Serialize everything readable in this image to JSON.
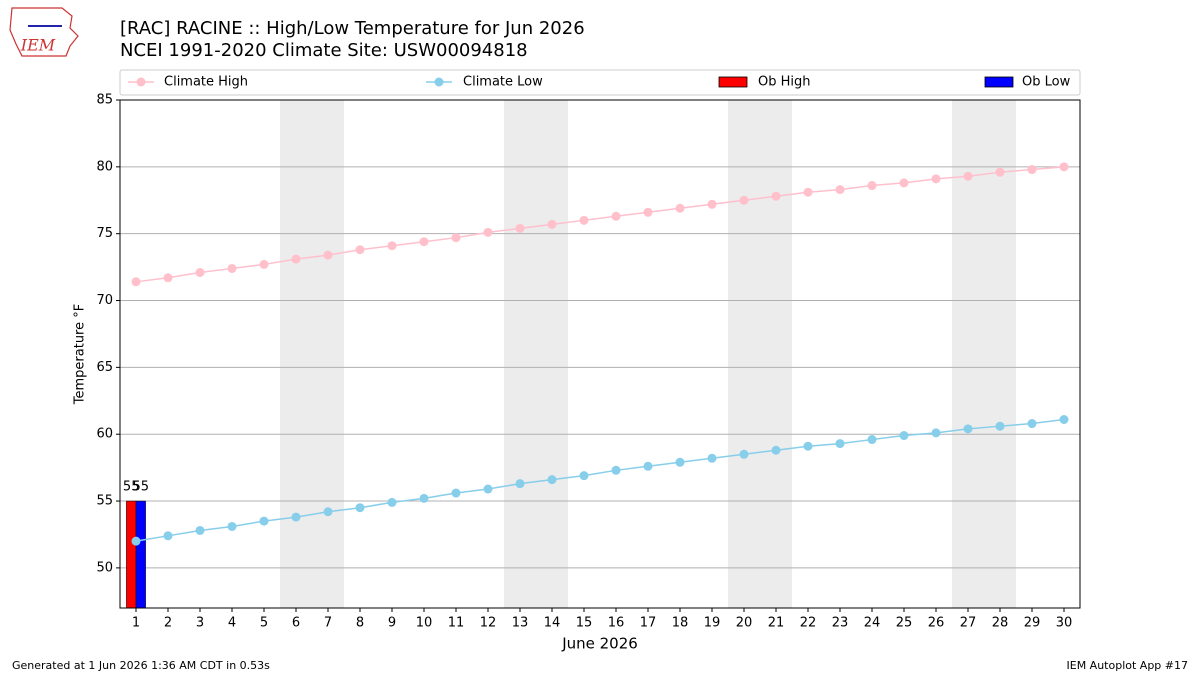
{
  "chart_data": {
    "type": "combo",
    "title": "[RAC] RACINE :: High/Low Temperature for Jun 2026",
    "subtitle": "NCEI 1991-2020 Climate Site: USW00094818",
    "y_label": "Temperature °F",
    "x_label": "June 2026",
    "x": [
      1,
      2,
      3,
      4,
      5,
      6,
      7,
      8,
      9,
      10,
      11,
      12,
      13,
      14,
      15,
      16,
      17,
      18,
      19,
      20,
      21,
      22,
      23,
      24,
      25,
      26,
      27,
      28,
      29,
      30
    ],
    "series": [
      {
        "name": "Climate High",
        "type": "line",
        "color": "#ffc0cb",
        "values": [
          71.4,
          71.7,
          72.1,
          72.4,
          72.7,
          73.1,
          73.4,
          73.8,
          74.1,
          74.4,
          74.7,
          75.1,
          75.4,
          75.7,
          76.0,
          76.3,
          76.6,
          76.9,
          77.2,
          77.5,
          77.8,
          78.1,
          78.3,
          78.6,
          78.8,
          79.1,
          79.3,
          79.6,
          79.8,
          80.0
        ]
      },
      {
        "name": "Climate Low",
        "type": "line",
        "color": "#87ceeb",
        "values": [
          52.0,
          52.4,
          52.8,
          53.1,
          53.5,
          53.8,
          54.2,
          54.5,
          54.9,
          55.2,
          55.6,
          55.9,
          56.3,
          56.6,
          56.9,
          57.3,
          57.6,
          57.9,
          58.2,
          58.5,
          58.8,
          59.1,
          59.3,
          59.6,
          59.9,
          60.1,
          60.4,
          60.6,
          60.8,
          61.1
        ]
      },
      {
        "name": "Ob High",
        "type": "bar",
        "color": "#ff0000",
        "values": [
          55,
          null,
          null,
          null,
          null,
          null,
          null,
          null,
          null,
          null,
          null,
          null,
          null,
          null,
          null,
          null,
          null,
          null,
          null,
          null,
          null,
          null,
          null,
          null,
          null,
          null,
          null,
          null,
          null,
          null
        ]
      },
      {
        "name": "Ob Low",
        "type": "bar",
        "color": "#0000ff",
        "values": [
          55,
          null,
          null,
          null,
          null,
          null,
          null,
          null,
          null,
          null,
          null,
          null,
          null,
          null,
          null,
          null,
          null,
          null,
          null,
          null,
          null,
          null,
          null,
          null,
          null,
          null,
          null,
          null,
          null,
          null
        ]
      }
    ],
    "xlim": [
      0.5,
      30.5
    ],
    "xticks": [
      1,
      2,
      3,
      4,
      5,
      6,
      7,
      8,
      9,
      10,
      11,
      12,
      13,
      14,
      15,
      16,
      17,
      18,
      19,
      20,
      21,
      22,
      23,
      24,
      25,
      26,
      27,
      28,
      29,
      30
    ],
    "ylim": [
      47,
      85
    ],
    "yticks": [
      50,
      55,
      60,
      65,
      70,
      75,
      80,
      85
    ],
    "grid": "y",
    "legend": "top",
    "shaded_x": [
      [
        5.5,
        7.5
      ],
      [
        12.5,
        14.5
      ],
      [
        19.5,
        21.5
      ],
      [
        26.5,
        28.5
      ]
    ]
  },
  "logo": "IEM",
  "footer": {
    "left": "Generated at 1 Jun 2026 1:36 AM CDT in 0.53s",
    "right": "IEM Autoplot App #17"
  }
}
